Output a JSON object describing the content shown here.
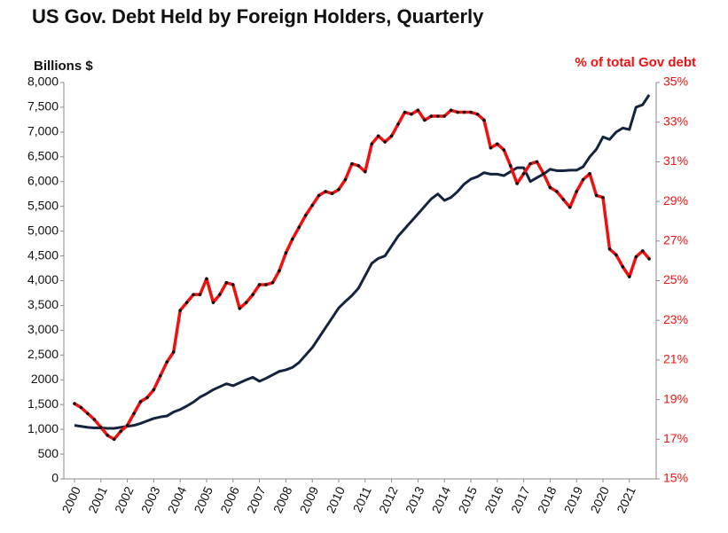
{
  "chart_data": {
    "type": "line",
    "title": "US Gov. Debt Held by Foreign Holders,  Quarterly",
    "y_label": "Billions  $",
    "y2_label": "% of total Gov debt",
    "categories": [
      "2000",
      null,
      null,
      null,
      "2001",
      null,
      null,
      null,
      "2002",
      null,
      null,
      null,
      "2003",
      null,
      null,
      null,
      "2004",
      null,
      null,
      null,
      "2005",
      null,
      null,
      null,
      "2006",
      null,
      null,
      null,
      "2007",
      null,
      null,
      null,
      "2008",
      null,
      null,
      null,
      "2009",
      null,
      null,
      null,
      "2010",
      null,
      null,
      null,
      "2011",
      null,
      null,
      null,
      "2012",
      null,
      null,
      null,
      "2013",
      null,
      null,
      null,
      "2014",
      null,
      null,
      null,
      "2015",
      null,
      null,
      null,
      "2016",
      null,
      null,
      null,
      "2017",
      null,
      null,
      null,
      "2018",
      null,
      null,
      null,
      "2019",
      null,
      null,
      null,
      "2020",
      null,
      null,
      null,
      "2021",
      null,
      null,
      null
    ],
    "series": [
      {
        "name": "Billions  $",
        "color": "#14243f",
        "values": [
          1080,
          1060,
          1040,
          1030,
          1030,
          1020,
          1020,
          1040,
          1060,
          1080,
          1120,
          1170,
          1220,
          1250,
          1270,
          1350,
          1400,
          1470,
          1550,
          1650,
          1720,
          1800,
          1860,
          1920,
          1880,
          1940,
          2000,
          2050,
          1970,
          2030,
          2100,
          2170,
          2200,
          2250,
          2350,
          2500,
          2650,
          2850,
          3050,
          3250,
          3450,
          3580,
          3700,
          3850,
          4100,
          4350,
          4450,
          4500,
          4700,
          4900,
          5050,
          5200,
          5350,
          5500,
          5650,
          5750,
          5620,
          5680,
          5800,
          5950,
          6050,
          6100,
          6180,
          6150,
          6150,
          6120,
          6200,
          6280,
          6280,
          6000,
          6080,
          6150,
          6250,
          6220,
          6220,
          6230,
          6230,
          6300,
          6500,
          6650,
          6900,
          6850,
          7000,
          7080,
          7050,
          7500,
          7550,
          7750
        ]
      },
      {
        "name": "% of total Gov debt",
        "color": "#ee1111",
        "axis": "y2",
        "values": [
          18.8,
          18.6,
          18.3,
          18.0,
          17.6,
          17.2,
          17.0,
          17.4,
          17.7,
          18.3,
          18.9,
          19.1,
          19.5,
          20.2,
          20.9,
          21.4,
          23.5,
          23.9,
          24.3,
          24.3,
          25.1,
          23.9,
          24.3,
          24.9,
          24.8,
          23.6,
          23.9,
          24.3,
          24.8,
          24.8,
          24.9,
          25.5,
          26.4,
          27.1,
          27.7,
          28.3,
          28.8,
          29.3,
          29.5,
          29.4,
          29.6,
          30.1,
          30.9,
          30.8,
          30.5,
          31.9,
          32.3,
          32.0,
          32.3,
          32.9,
          33.5,
          33.4,
          33.6,
          33.1,
          33.3,
          33.3,
          33.3,
          33.6,
          33.5,
          33.5,
          33.5,
          33.4,
          33.1,
          31.7,
          31.9,
          31.6,
          30.8,
          29.9,
          30.4,
          30.9,
          31.0,
          30.4,
          29.7,
          29.5,
          29.1,
          28.7,
          29.5,
          30.1,
          30.4,
          29.3,
          29.2,
          26.6,
          26.3,
          25.7,
          25.2,
          26.2,
          26.5,
          26.1
        ]
      }
    ],
    "ylim": [
      0,
      8000
    ],
    "yticks": [
      0,
      500,
      {
        "value": 1000,
        "label": "1,000"
      },
      {
        "value": 1500,
        "label": "1,500"
      },
      2000,
      {
        "value": 2500,
        "label": "2,500"
      },
      {
        "value": 3000,
        "label": "3,000"
      },
      {
        "value": 3500,
        "label": "3,500"
      },
      {
        "value": 4000,
        "label": "4,000"
      },
      {
        "value": 4500,
        "label": "4,500"
      },
      {
        "value": 5000,
        "label": "5,000"
      },
      {
        "value": 5500,
        "label": "5,500"
      },
      {
        "value": 6000,
        "label": "6,000"
      },
      {
        "value": 6500,
        "label": "6,500"
      },
      {
        "value": 7000,
        "label": "7,000"
      },
      {
        "value": 7500,
        "label": "7,500"
      },
      {
        "value": 8000,
        "label": "8,000"
      }
    ],
    "y2lim": [
      15,
      35
    ],
    "y2ticks": [
      {
        "value": 15,
        "label": "15%"
      },
      {
        "value": 17,
        "label": "17%"
      },
      {
        "value": 19,
        "label": "19%"
      },
      {
        "value": 21,
        "label": "21%"
      },
      {
        "value": 23,
        "label": "23%"
      },
      {
        "value": 25,
        "label": "25%"
      },
      {
        "value": 27,
        "label": "27%"
      },
      {
        "value": 29,
        "label": "29%"
      },
      {
        "value": 31,
        "label": "31%"
      },
      {
        "value": 33,
        "label": "33%"
      },
      {
        "value": 35,
        "label": "35%"
      }
    ],
    "grid": false,
    "markers": true
  }
}
